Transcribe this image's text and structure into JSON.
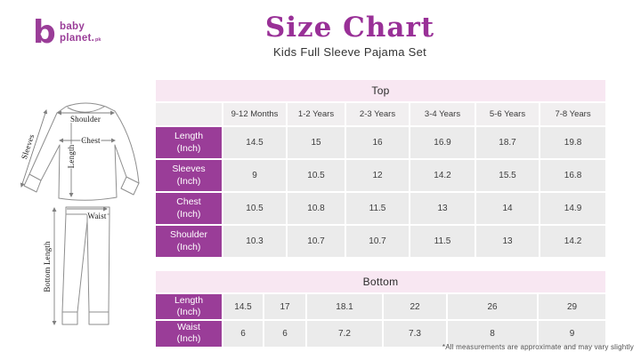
{
  "brand": {
    "line1": "baby",
    "line2": "planet.",
    "suffix": "pk"
  },
  "header": {
    "title": "Size Chart",
    "subtitle": "Kids Full Sleeve Pajama Set"
  },
  "diagram": {
    "labels": {
      "sleeves": "Sleeves",
      "shoulder": "Shoulder",
      "chest": "Chest",
      "length": "Length",
      "waist": "Waist",
      "bottom_length": "Bottom Length"
    }
  },
  "top_table": {
    "section_title": "Top",
    "columns": [
      "9-12 Months",
      "1-2 Years",
      "2-3 Years",
      "3-4 Years",
      "5-6 Years",
      "7-8 Years"
    ],
    "rows": [
      {
        "label": "Length",
        "unit": "(Inch)",
        "values": [
          "14.5",
          "15",
          "16",
          "16.9",
          "18.7",
          "19.8"
        ]
      },
      {
        "label": "Sleeves",
        "unit": "(Inch)",
        "values": [
          "9",
          "10.5",
          "12",
          "14.2",
          "15.5",
          "16.8"
        ]
      },
      {
        "label": "Chest",
        "unit": "(Inch)",
        "values": [
          "10.5",
          "10.8",
          "11.5",
          "13",
          "14",
          "14.9"
        ]
      },
      {
        "label": "Shoulder",
        "unit": "(Inch)",
        "values": [
          "10.3",
          "10.7",
          "10.7",
          "11.5",
          "13",
          "14.2"
        ]
      }
    ]
  },
  "bottom_table": {
    "section_title": "Bottom",
    "rows": [
      {
        "label": "Length",
        "unit": "(Inch)",
        "values": [
          "14.5",
          "17",
          "18.1",
          "22",
          "26",
          "29"
        ]
      },
      {
        "label": "Waist",
        "unit": "(Inch)",
        "values": [
          "6",
          "6",
          "7.2",
          "7.3",
          "8",
          "9"
        ]
      }
    ]
  },
  "footnote": "*All measurements are approximate and may vary slightly",
  "colors": {
    "brand_purple": "#9a3d98",
    "title_purple": "#993097",
    "pink_band": "#f8e7f2",
    "header_gray": "#f1eff0",
    "cell_gray": "#ebebeb"
  }
}
